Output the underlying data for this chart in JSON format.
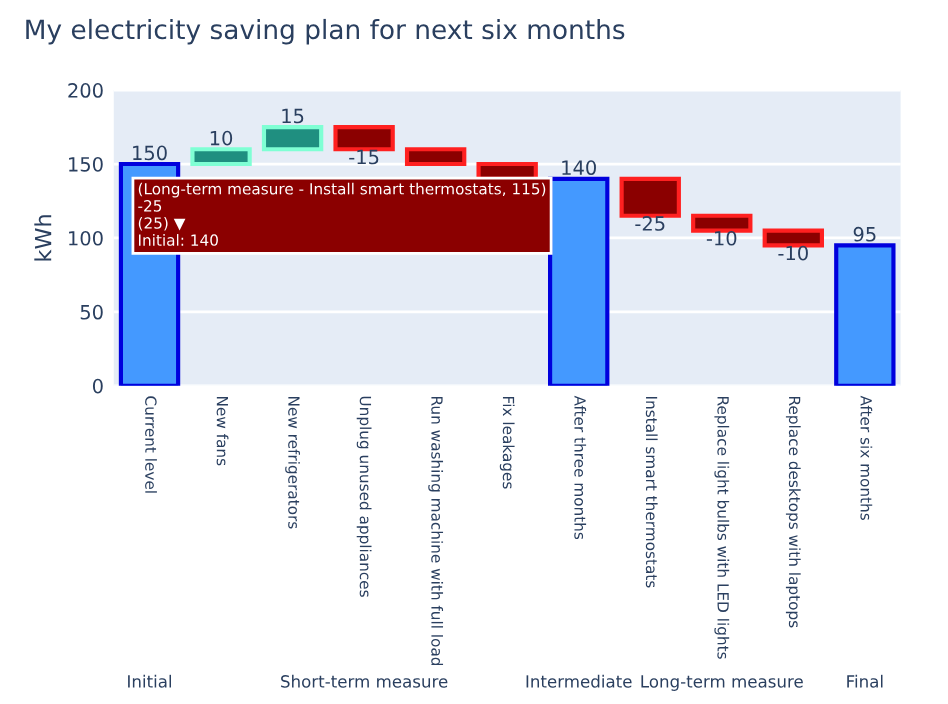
{
  "chart_data": {
    "type": "bar",
    "title": "My electricity saving plan for next six months",
    "ylabel": "kWh",
    "categories": [
      "Current level",
      "New fans",
      "New refrigerators",
      "Unplug unused appliances",
      "Run washing machine with full load",
      "Fix leakages",
      "After three months",
      "Install smart thermostats",
      "Replace light bulbs with LED lights",
      "Replace desktops with laptops",
      "After six months"
    ],
    "values": [
      150,
      10,
      15,
      -15,
      -10,
      -10,
      140,
      -25,
      -10,
      -10,
      95
    ],
    "base": [
      0,
      150,
      160,
      175,
      160,
      150,
      0,
      140,
      115,
      105,
      0
    ],
    "colors": [
      "#4499ff",
      "#1f8f80",
      "#1f8f80",
      "#8b0000",
      "#8b0000",
      "#8b0000",
      "#4499ff",
      "#8b0000",
      "#8b0000",
      "#8b0000",
      "#4499ff"
    ],
    "value_labels": [
      "150",
      "10",
      "15",
      "-15",
      null,
      null,
      "140",
      "-25",
      "-10",
      "-10",
      "95"
    ],
    "ylim": [
      0,
      200
    ],
    "yticks": [
      0,
      50,
      100,
      150,
      200
    ],
    "grid": "y",
    "annotations": [
      "Initial",
      "Short-term measure",
      "Intermediate",
      "Long-term measure",
      "Final",
      "(Long-term measure - Install smart thermostats, 115)\n-25\n(25) ▼\nInitial: 140"
    ]
  }
}
